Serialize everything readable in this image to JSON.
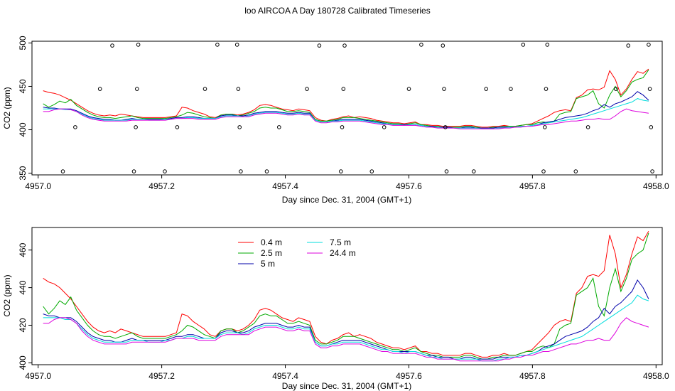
{
  "figure_title": "loo AIRCOA A  Day 180728  Calibrated Timeseries",
  "chart_data": [
    {
      "type": "line",
      "xlabel": "Day since Dec. 31, 2004 (GMT+1)",
      "ylabel": "CO2 (ppm)",
      "xlim": [
        4956.99,
        4958.01
      ],
      "ylim": [
        348,
        502
      ],
      "xticks": [
        "4957.0",
        "4957.2",
        "4957.4",
        "4957.6",
        "4957.8",
        "4958.0"
      ],
      "yticks": [
        "350",
        "400",
        "450",
        "500"
      ],
      "grid": false,
      "series": [
        {
          "name": "0.4 m",
          "color": "#ff0000",
          "values": [
            445,
            443,
            442,
            440,
            437,
            434,
            430,
            426,
            422,
            419,
            417,
            416,
            417,
            416,
            418,
            417,
            416,
            415,
            414,
            414,
            414,
            414,
            414,
            415,
            416,
            426,
            425,
            422,
            420,
            418,
            415,
            414,
            417,
            418,
            418,
            417,
            418,
            420,
            423,
            428,
            429,
            428,
            426,
            424,
            423,
            422,
            424,
            423,
            422,
            414,
            411,
            410,
            412,
            413,
            415,
            416,
            414,
            415,
            414,
            413,
            411,
            410,
            409,
            408,
            408,
            407,
            408,
            409,
            406,
            406,
            405,
            405,
            404,
            404,
            404,
            404,
            405,
            405,
            404,
            403,
            403,
            404,
            404,
            405,
            404,
            404,
            405,
            406,
            407,
            410,
            413,
            416,
            420,
            422,
            423,
            422,
            437,
            440,
            446,
            447,
            446,
            449,
            468,
            458,
            440,
            447,
            458,
            467,
            465,
            470
          ]
        },
        {
          "name": "2.5 m",
          "color": "#00aa00",
          "values": [
            430,
            426,
            429,
            433,
            431,
            435,
            428,
            424,
            420,
            417,
            415,
            414,
            414,
            413,
            414,
            415,
            416,
            414,
            413,
            413,
            413,
            413,
            413,
            414,
            415,
            417,
            420,
            419,
            417,
            415,
            414,
            413,
            417,
            418,
            418,
            416,
            417,
            419,
            421,
            425,
            426,
            425,
            425,
            423,
            421,
            421,
            422,
            421,
            420,
            412,
            410,
            410,
            411,
            412,
            414,
            414,
            414,
            413,
            412,
            411,
            410,
            409,
            408,
            407,
            407,
            406,
            407,
            408,
            406,
            405,
            404,
            404,
            403,
            403,
            403,
            403,
            404,
            404,
            403,
            402,
            402,
            403,
            403,
            404,
            404,
            404,
            405,
            406,
            406,
            408,
            409,
            408,
            410,
            418,
            420,
            421,
            436,
            438,
            440,
            445,
            430,
            425,
            440,
            450,
            438,
            445,
            455,
            458,
            460,
            469
          ]
        },
        {
          "name": "5 m",
          "color": "#0000aa",
          "values": [
            426,
            425,
            425,
            424,
            424,
            424,
            422,
            419,
            416,
            414,
            413,
            412,
            412,
            411,
            411,
            412,
            413,
            412,
            412,
            412,
            412,
            412,
            412,
            413,
            414,
            414,
            415,
            415,
            414,
            413,
            413,
            413,
            416,
            417,
            417,
            416,
            416,
            417,
            419,
            420,
            421,
            421,
            421,
            420,
            419,
            419,
            420,
            419,
            419,
            411,
            409,
            409,
            410,
            411,
            412,
            412,
            412,
            412,
            411,
            410,
            409,
            408,
            407,
            406,
            406,
            406,
            406,
            406,
            405,
            404,
            404,
            403,
            403,
            403,
            402,
            402,
            403,
            403,
            402,
            402,
            402,
            402,
            403,
            403,
            403,
            403,
            404,
            404,
            405,
            406,
            408,
            409,
            410,
            412,
            414,
            415,
            416,
            417,
            419,
            422,
            424,
            429,
            426,
            430,
            432,
            435,
            438,
            444,
            440,
            434
          ]
        },
        {
          "name": "7.5 m",
          "color": "#00dddd",
          "values": [
            424,
            424,
            424,
            424,
            423,
            423,
            421,
            418,
            415,
            413,
            412,
            411,
            411,
            411,
            411,
            411,
            412,
            412,
            412,
            411,
            411,
            411,
            412,
            412,
            413,
            413,
            414,
            414,
            413,
            413,
            413,
            413,
            415,
            416,
            416,
            416,
            415,
            416,
            418,
            419,
            420,
            420,
            420,
            419,
            418,
            418,
            419,
            418,
            418,
            411,
            409,
            409,
            410,
            410,
            411,
            411,
            411,
            411,
            410,
            409,
            408,
            407,
            407,
            406,
            406,
            405,
            406,
            406,
            405,
            404,
            403,
            403,
            402,
            402,
            402,
            402,
            402,
            402,
            402,
            401,
            401,
            401,
            402,
            402,
            403,
            403,
            404,
            404,
            405,
            406,
            407,
            408,
            409,
            410,
            411,
            412,
            413,
            414,
            416,
            418,
            420,
            422,
            424,
            426,
            428,
            430,
            432,
            436,
            434,
            433
          ]
        },
        {
          "name": "24.4 m",
          "color": "#dd00dd",
          "values": [
            421,
            421,
            423,
            424,
            424,
            423,
            421,
            417,
            414,
            412,
            411,
            410,
            410,
            410,
            410,
            410,
            411,
            411,
            411,
            411,
            411,
            411,
            411,
            412,
            413,
            413,
            413,
            413,
            412,
            412,
            412,
            412,
            414,
            415,
            415,
            415,
            415,
            415,
            417,
            418,
            419,
            419,
            419,
            418,
            417,
            417,
            418,
            417,
            417,
            410,
            408,
            408,
            409,
            409,
            410,
            410,
            410,
            410,
            409,
            408,
            407,
            406,
            406,
            405,
            405,
            405,
            405,
            405,
            404,
            403,
            403,
            402,
            402,
            402,
            402,
            401,
            401,
            401,
            401,
            401,
            401,
            401,
            401,
            402,
            402,
            403,
            403,
            404,
            404,
            405,
            406,
            406,
            407,
            408,
            409,
            410,
            410,
            411,
            412,
            412,
            413,
            412,
            412,
            416,
            421,
            424,
            422,
            421,
            420,
            419
          ]
        }
      ],
      "markers": {
        "symbol": "open-circle",
        "points": [
          [
            4957.04,
            352
          ],
          [
            4957.06,
            403
          ],
          [
            4957.1,
            447
          ],
          [
            4957.12,
            497
          ],
          [
            4957.155,
            352
          ],
          [
            4957.158,
            403
          ],
          [
            4957.16,
            447
          ],
          [
            4957.162,
            498
          ],
          [
            4957.205,
            352
          ],
          [
            4957.225,
            403
          ],
          [
            4957.27,
            447
          ],
          [
            4957.29,
            498
          ],
          [
            4957.322,
            498
          ],
          [
            4957.324,
            447
          ],
          [
            4957.326,
            403
          ],
          [
            4957.328,
            352
          ],
          [
            4957.37,
            352
          ],
          [
            4957.39,
            403
          ],
          [
            4957.435,
            447
          ],
          [
            4957.455,
            497
          ],
          [
            4957.49,
            352
          ],
          [
            4957.492,
            403
          ],
          [
            4957.494,
            447
          ],
          [
            4957.496,
            497
          ],
          [
            4957.54,
            352
          ],
          [
            4957.56,
            403
          ],
          [
            4957.6,
            447
          ],
          [
            4957.62,
            498
          ],
          [
            4957.655,
            497
          ],
          [
            4957.657,
            447
          ],
          [
            4957.659,
            403
          ],
          [
            4957.661,
            352
          ],
          [
            4957.705,
            352
          ],
          [
            4957.725,
            447
          ],
          [
            4957.765,
            447
          ],
          [
            4957.785,
            498
          ],
          [
            4957.818,
            352
          ],
          [
            4957.82,
            403
          ],
          [
            4957.822,
            447
          ],
          [
            4957.824,
            498
          ],
          [
            4957.87,
            352
          ],
          [
            4957.89,
            403
          ],
          [
            4957.935,
            447
          ],
          [
            4957.955,
            497
          ],
          [
            4957.988,
            498
          ],
          [
            4957.99,
            447
          ],
          [
            4957.992,
            403
          ],
          [
            4957.994,
            352
          ]
        ]
      }
    },
    {
      "type": "line",
      "xlabel": "Day since Dec. 31, 2004 (GMT+1)",
      "ylabel": "CO2 (ppm)",
      "xlim": [
        4956.99,
        4958.01
      ],
      "ylim": [
        399,
        472
      ],
      "xticks": [
        "4957.0",
        "4957.2",
        "4957.4",
        "4957.6",
        "4957.8",
        "4958.0"
      ],
      "yticks": [
        "400",
        "420",
        "440",
        "460"
      ],
      "grid": false,
      "legend_position": "top-left",
      "legend": [
        {
          "label": "0.4 m",
          "color": "#ff0000"
        },
        {
          "label": "7.5 m",
          "color": "#00dddd"
        },
        {
          "label": "2.5 m",
          "color": "#00aa00"
        },
        {
          "label": "24.4 m",
          "color": "#dd00dd"
        },
        {
          "label": "5 m",
          "color": "#0000aa"
        }
      ],
      "series_ref": "same as chart 1"
    }
  ]
}
